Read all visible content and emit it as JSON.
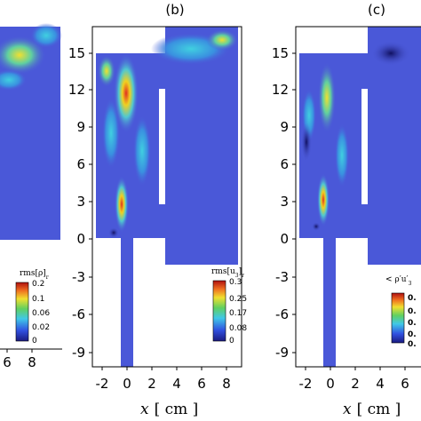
{
  "chart_data": [
    {
      "type": "heatmap",
      "panel_label": "",
      "colorbar_title": "rms[ρ]",
      "colorbar_title_sub": "r",
      "colorbar_ticks": [
        "0.2",
        "0.1",
        "0.06",
        "0.02",
        "0"
      ],
      "x_ticks_visible": [
        "6",
        "8"
      ]
    },
    {
      "type": "heatmap",
      "panel_label": "(b)",
      "colorbar_title": "rms[u",
      "colorbar_title_sub": "3",
      "colorbar_title_end": "]",
      "colorbar_title_sub2": "r",
      "colorbar_ticks": [
        "0.3",
        "0.25",
        "0.17",
        "0.08",
        "0"
      ],
      "x_ticks": [
        "-2",
        "0",
        "2",
        "4",
        "6",
        "8"
      ],
      "y_ticks": [
        "15",
        "12",
        "9",
        "6",
        "3",
        "0",
        "-3",
        "-6",
        "-9"
      ],
      "xlabel": "x",
      "xlabel_unit": "[ cm ]",
      "xlim": [
        -2.5,
        9.5
      ],
      "ylim": [
        -10,
        17
      ]
    },
    {
      "type": "heatmap",
      "panel_label": "(c)",
      "colorbar_title": "< ρ′u′",
      "colorbar_title_sub": "3",
      "colorbar_ticks": [
        "0.",
        "0.",
        "0.",
        "0.",
        "0."
      ],
      "x_ticks": [
        "-2",
        "0",
        "2",
        "4",
        "6"
      ],
      "y_ticks": [
        "15",
        "12",
        "9",
        "6",
        "3",
        "0",
        "-3",
        "-6",
        "-9"
      ],
      "xlabel": "x",
      "xlabel_unit": "[ cm ]"
    }
  ],
  "colors": {
    "background_field": "#4a58d8",
    "domain_cut": "#ffffff"
  }
}
